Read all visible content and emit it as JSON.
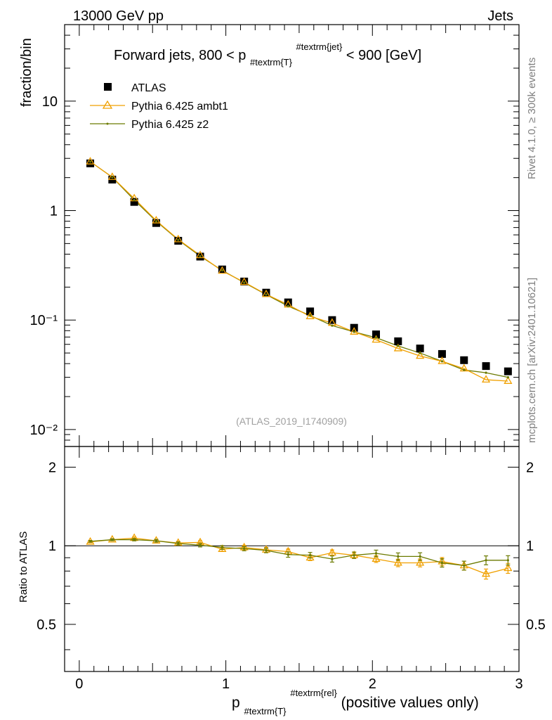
{
  "header": {
    "left": "13000 GeV pp",
    "right": "Jets"
  },
  "title": {
    "main": "Forward jets, 800 < p",
    "sub": "#textrm{T}",
    "sup": "#textrm{jet}",
    "tail": " < 900 [GeV]"
  },
  "side_labels": {
    "rivet": "Rivet 4.1.0, ≥ 300k events",
    "mcplots": "mcplots.cern.ch [arXiv:2401.10621]"
  },
  "watermark": "(ATLAS_2019_I1740909)",
  "axes": {
    "ylabel_main": "fraction/bin",
    "ylabel_ratio": "Ratio to ATLAS",
    "xlabel_main": "p",
    "xlabel_sub": "#textrm{T}",
    "xlabel_sup": "#textrm{rel}",
    "xlabel_tail": " (positive values only)",
    "main_ticks": [
      "10⁻²",
      "10⁻¹",
      "1",
      "10"
    ],
    "ratio_ticks": [
      "0.5",
      "1",
      "2"
    ],
    "x_ticks": [
      "0",
      "1",
      "2",
      "3"
    ]
  },
  "legend": {
    "atlas": "ATLAS",
    "ambt1": "Pythia 6.425 ambt1",
    "z2": "Pythia 6.425 z2"
  },
  "chart_data": {
    "type": "scatter",
    "title": "Forward jets, 800 < pT(jet) < 900 [GeV]",
    "xlabel": "pT(rel) (positive values only)",
    "ylabel": "fraction/bin",
    "xlim": [
      -0.1,
      3.0
    ],
    "ylim": [
      0.007,
      50
    ],
    "yscale": "log",
    "ratio_ylim": [
      0.33,
      2.4
    ],
    "x": [
      0.075,
      0.225,
      0.375,
      0.525,
      0.675,
      0.825,
      0.975,
      1.125,
      1.275,
      1.425,
      1.575,
      1.725,
      1.875,
      2.025,
      2.175,
      2.325,
      2.475,
      2.625,
      2.775,
      2.925
    ],
    "series": [
      {
        "name": "ATLAS",
        "color": "#000000",
        "values": [
          2.7,
          1.92,
          1.2,
          0.77,
          0.53,
          0.38,
          0.29,
          0.225,
          0.178,
          0.145,
          0.12,
          0.1,
          0.085,
          0.074,
          0.064,
          0.055,
          0.049,
          0.043,
          0.038,
          0.034
        ]
      },
      {
        "name": "Pythia 6.425 ambt1",
        "color": "#f0a000",
        "values": [
          2.8,
          2.02,
          1.29,
          0.81,
          0.545,
          0.39,
          0.281,
          0.222,
          0.172,
          0.138,
          0.108,
          0.094,
          0.078,
          0.066,
          0.055,
          0.047,
          0.042,
          0.036,
          0.0285,
          0.0277
        ],
        "ratio": [
          1.035,
          1.055,
          1.07,
          1.045,
          1.025,
          1.03,
          0.97,
          0.985,
          0.965,
          0.95,
          0.9,
          0.94,
          0.92,
          0.89,
          0.86,
          0.86,
          0.87,
          0.84,
          0.78,
          0.82
        ]
      },
      {
        "name": "Pythia 6.425 z2",
        "color": "#6b7a00",
        "values": [
          2.8,
          2.02,
          1.25,
          0.8,
          0.54,
          0.383,
          0.284,
          0.22,
          0.171,
          0.134,
          0.11,
          0.089,
          0.078,
          0.069,
          0.058,
          0.05,
          0.042,
          0.035,
          0.033,
          0.03
        ],
        "ratio": [
          1.04,
          1.055,
          1.055,
          1.045,
          1.02,
          1.005,
          0.985,
          0.975,
          0.96,
          0.925,
          0.92,
          0.89,
          0.92,
          0.935,
          0.91,
          0.91,
          0.86,
          0.84,
          0.88,
          0.88
        ]
      }
    ]
  }
}
